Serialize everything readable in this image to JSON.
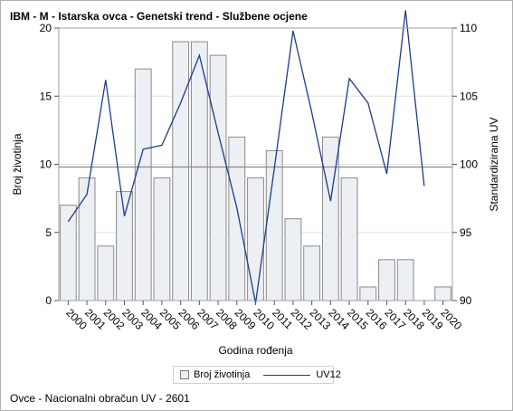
{
  "chart_data": {
    "type": "bar",
    "title": "IBM - M - Istarska ovca - Genetski trend - Službene ocjene",
    "xlabel": "Godina rođenja",
    "ylabel": "Broj životinja",
    "y2label": "Standardizirana UV",
    "categories": [
      "2000",
      "2001",
      "2002",
      "2003",
      "2004",
      "2005",
      "2006",
      "2007",
      "2008",
      "2009",
      "2010",
      "2011",
      "2012",
      "2013",
      "2014",
      "2015",
      "2016",
      "2017",
      "2018",
      "2019",
      "2020"
    ],
    "ylim": [
      0,
      20
    ],
    "yticks": [
      0,
      5,
      10,
      15,
      20
    ],
    "y2lim": [
      90,
      110
    ],
    "y2ticks": [
      90,
      95,
      100,
      105,
      110
    ],
    "reference_line_y2": 99.8,
    "grid": true,
    "legend_position": "bottom",
    "series": [
      {
        "name": "Broj životinja",
        "kind": "bar",
        "axis": "left",
        "color": "#eceff4",
        "values": [
          7,
          9,
          4,
          8,
          17,
          9,
          19,
          19,
          18,
          12,
          9,
          11,
          6,
          4,
          12,
          9,
          1,
          3,
          3,
          null,
          1
        ]
      },
      {
        "name": "UV12",
        "kind": "line",
        "axis": "right",
        "color": "#1b3c8a",
        "values": [
          95.8,
          97.8,
          106.2,
          96.2,
          101.1,
          101.4,
          104.5,
          108.0,
          102.3,
          96.8,
          89.8,
          99.7,
          109.8,
          103.8,
          97.3,
          106.3,
          104.5,
          99.3,
          111.3,
          98.4,
          null
        ]
      }
    ]
  },
  "legend": {
    "items": [
      "Broj životinja",
      "UV12"
    ]
  },
  "footnote": "Ovce - Nacionalni obračun UV - 2601"
}
